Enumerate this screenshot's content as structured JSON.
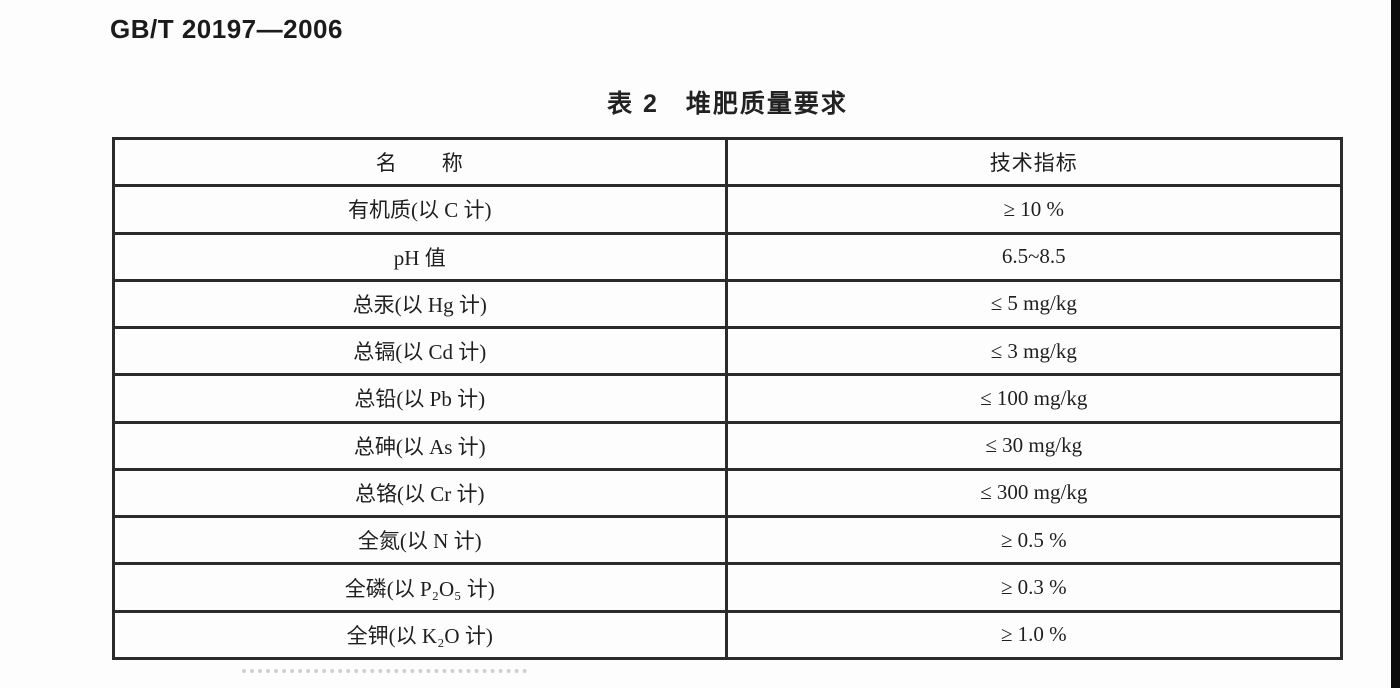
{
  "page": {
    "standard_code": "GB/T 20197—2006",
    "table_title": "表 2　堆肥质量要求"
  },
  "table": {
    "columns": {
      "name": "名　　称",
      "indicator": "技术指标"
    },
    "rows": [
      {
        "name": "有机质(以 C 计)",
        "value": "≥ 10 %"
      },
      {
        "name": "pH 值",
        "value": "6.5~8.5"
      },
      {
        "name": "总汞(以 Hg 计)",
        "value": "≤ 5 mg/kg"
      },
      {
        "name": "总镉(以 Cd 计)",
        "value": "≤ 3 mg/kg"
      },
      {
        "name": "总铅(以 Pb 计)",
        "value": "≤ 100 mg/kg"
      },
      {
        "name": "总砷(以 As 计)",
        "value": "≤ 30 mg/kg"
      },
      {
        "name": "总铬(以 Cr 计)",
        "value": "≤ 300 mg/kg"
      },
      {
        "name": "全氮(以 N 计)",
        "value": "≥ 0.5 %"
      },
      {
        "name": "全磷(以 P₂O₅ 计)",
        "value": "≥ 0.3 %"
      },
      {
        "name": "全钾(以 K₂O 计)",
        "value": "≥ 1.0 %"
      }
    ]
  }
}
